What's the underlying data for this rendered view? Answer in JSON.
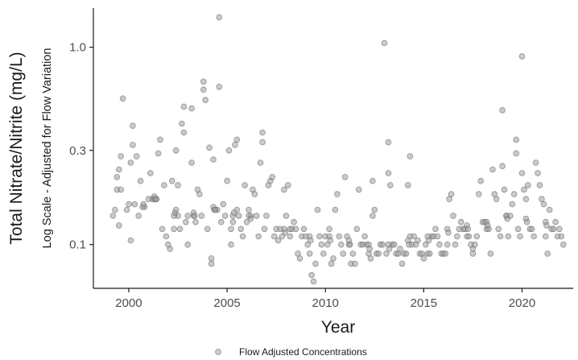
{
  "chart_data": {
    "type": "scatter",
    "title": "",
    "xlabel": "Year",
    "ylabel": "Total Nitrate/Nitrite (mg/L)",
    "ylabel_secondary": "Log Scale - Adjusted for Flow Variation",
    "x_scale": "linear",
    "y_scale": "log",
    "xlim": [
      1998.2,
      2022.6
    ],
    "ylim": [
      0.06,
      1.58
    ],
    "x_ticks": [
      2000,
      2005,
      2010,
      2015,
      2020
    ],
    "x_tick_labels": [
      "2000",
      "2005",
      "2010",
      "2015",
      "2020"
    ],
    "y_ticks": [
      0.1,
      0.3,
      1.0
    ],
    "y_tick_labels": [
      "0.1",
      "0.3",
      "1.0"
    ],
    "grid": false,
    "legend_position": "bottom",
    "marker_color": "#9e9e9e",
    "series": [
      {
        "name": "Flow Adjusted Concentrations",
        "points": [
          [
            1999.2,
            0.14
          ],
          [
            1999.3,
            0.15
          ],
          [
            1999.4,
            0.19
          ],
          [
            1999.4,
            0.22
          ],
          [
            1999.5,
            0.125
          ],
          [
            1999.5,
            0.24
          ],
          [
            1999.6,
            0.28
          ],
          [
            1999.6,
            0.19
          ],
          [
            1999.7,
            0.55
          ],
          [
            1999.9,
            0.15
          ],
          [
            2000.0,
            0.16
          ],
          [
            2000.1,
            0.105
          ],
          [
            2000.1,
            0.26
          ],
          [
            2000.2,
            0.4
          ],
          [
            2000.2,
            0.32
          ],
          [
            2000.3,
            0.16
          ],
          [
            2000.4,
            0.28
          ],
          [
            2000.5,
            0.14
          ],
          [
            2000.6,
            0.21
          ],
          [
            2000.8,
            0.155
          ],
          [
            2001.0,
            0.17
          ],
          [
            2001.1,
            0.23
          ],
          [
            2001.2,
            0.17
          ],
          [
            2001.3,
            0.17
          ],
          [
            2001.4,
            0.17
          ],
          [
            2001.5,
            0.29
          ],
          [
            2001.6,
            0.34
          ],
          [
            2001.7,
            0.12
          ],
          [
            2001.8,
            0.2
          ],
          [
            2001.9,
            0.11
          ],
          [
            2002.0,
            0.1
          ],
          [
            2002.1,
            0.095
          ],
          [
            2002.2,
            0.21
          ],
          [
            2002.3,
            0.12
          ],
          [
            2002.4,
            0.3
          ],
          [
            2002.5,
            0.14
          ],
          [
            2002.5,
            0.2
          ],
          [
            2002.6,
            0.12
          ],
          [
            2002.7,
            0.41
          ],
          [
            2002.8,
            0.5
          ],
          [
            2002.8,
            0.37
          ],
          [
            2002.9,
            0.13
          ],
          [
            2003.0,
            0.14
          ],
          [
            2003.0,
            0.1
          ],
          [
            2003.2,
            0.49
          ],
          [
            2003.2,
            0.26
          ],
          [
            2003.3,
            0.14
          ],
          [
            2003.4,
            0.13
          ],
          [
            2003.5,
            0.19
          ],
          [
            2003.6,
            0.18
          ],
          [
            2003.7,
            0.14
          ],
          [
            2003.8,
            0.61
          ],
          [
            2003.8,
            0.67
          ],
          [
            2003.9,
            0.54
          ],
          [
            2004.0,
            0.12
          ],
          [
            2004.1,
            0.31
          ],
          [
            2004.2,
            0.08
          ],
          [
            2004.2,
            0.085
          ],
          [
            2004.3,
            0.27
          ],
          [
            2004.4,
            0.15
          ],
          [
            2004.5,
            0.15
          ],
          [
            2004.6,
            0.63
          ],
          [
            2004.6,
            1.42
          ],
          [
            2004.7,
            0.13
          ],
          [
            2004.8,
            0.16
          ],
          [
            2004.9,
            0.14
          ],
          [
            2005.0,
            0.21
          ],
          [
            2005.1,
            0.3
          ],
          [
            2005.2,
            0.12
          ],
          [
            2005.2,
            0.1
          ],
          [
            2005.3,
            0.13
          ],
          [
            2005.4,
            0.32
          ],
          [
            2005.5,
            0.34
          ],
          [
            2005.5,
            0.15
          ],
          [
            2005.6,
            0.14
          ],
          [
            2005.7,
            0.12
          ],
          [
            2005.8,
            0.11
          ],
          [
            2005.9,
            0.2
          ],
          [
            2006.0,
            0.13
          ],
          [
            2006.1,
            0.15
          ],
          [
            2006.2,
            0.14
          ],
          [
            2006.3,
            0.19
          ],
          [
            2006.4,
            0.18
          ],
          [
            2006.5,
            0.14
          ],
          [
            2006.6,
            0.11
          ],
          [
            2006.7,
            0.26
          ],
          [
            2006.8,
            0.33
          ],
          [
            2006.8,
            0.37
          ],
          [
            2006.9,
            0.12
          ],
          [
            2007.0,
            0.14
          ],
          [
            2007.1,
            0.2
          ],
          [
            2007.2,
            0.21
          ],
          [
            2007.3,
            0.22
          ],
          [
            2007.4,
            0.11
          ],
          [
            2007.5,
            0.12
          ],
          [
            2007.6,
            0.105
          ],
          [
            2007.7,
            0.12
          ],
          [
            2007.8,
            0.11
          ],
          [
            2007.9,
            0.19
          ],
          [
            2008.0,
            0.14
          ],
          [
            2008.1,
            0.2
          ],
          [
            2008.2,
            0.12
          ],
          [
            2008.3,
            0.12
          ],
          [
            2008.4,
            0.13
          ],
          [
            2008.5,
            0.12
          ],
          [
            2008.6,
            0.09
          ],
          [
            2008.7,
            0.085
          ],
          [
            2008.8,
            0.11
          ],
          [
            2008.9,
            0.12
          ],
          [
            2009.0,
            0.11
          ],
          [
            2009.1,
            0.1
          ],
          [
            2009.2,
            0.09
          ],
          [
            2009.3,
            0.07
          ],
          [
            2009.4,
            0.065
          ],
          [
            2009.5,
            0.08
          ],
          [
            2009.6,
            0.15
          ],
          [
            2009.7,
            0.11
          ],
          [
            2009.8,
            0.1
          ],
          [
            2009.9,
            0.09
          ],
          [
            2010.0,
            0.11
          ],
          [
            2010.1,
            0.1
          ],
          [
            2010.2,
            0.12
          ],
          [
            2010.3,
            0.08
          ],
          [
            2010.4,
            0.085
          ],
          [
            2010.5,
            0.15
          ],
          [
            2010.6,
            0.18
          ],
          [
            2010.7,
            0.11
          ],
          [
            2010.8,
            0.1
          ],
          [
            2010.9,
            0.09
          ],
          [
            2011.0,
            0.22
          ],
          [
            2011.1,
            0.11
          ],
          [
            2011.2,
            0.1
          ],
          [
            2011.3,
            0.08
          ],
          [
            2011.4,
            0.09
          ],
          [
            2011.5,
            0.08
          ],
          [
            2011.6,
            0.12
          ],
          [
            2011.7,
            0.19
          ],
          [
            2011.8,
            0.1
          ],
          [
            2011.9,
            0.1
          ],
          [
            2012.0,
            0.11
          ],
          [
            2012.1,
            0.1
          ],
          [
            2012.2,
            0.09
          ],
          [
            2012.3,
            0.085
          ],
          [
            2012.4,
            0.14
          ],
          [
            2012.4,
            0.21
          ],
          [
            2012.5,
            0.15
          ],
          [
            2012.6,
            0.09
          ],
          [
            2012.7,
            0.09
          ],
          [
            2012.8,
            0.1
          ],
          [
            2012.9,
            0.1
          ],
          [
            2013.0,
            1.05
          ],
          [
            2013.1,
            0.09
          ],
          [
            2013.2,
            0.33
          ],
          [
            2013.2,
            0.23
          ],
          [
            2013.3,
            0.2
          ],
          [
            2013.4,
            0.1
          ],
          [
            2013.5,
            0.1
          ],
          [
            2013.6,
            0.09
          ],
          [
            2013.7,
            0.09
          ],
          [
            2013.8,
            0.095
          ],
          [
            2013.9,
            0.08
          ],
          [
            2014.0,
            0.09
          ],
          [
            2014.1,
            0.09
          ],
          [
            2014.2,
            0.2
          ],
          [
            2014.3,
            0.28
          ],
          [
            2014.3,
            0.11
          ],
          [
            2014.4,
            0.1
          ],
          [
            2014.5,
            0.11
          ],
          [
            2014.6,
            0.1
          ],
          [
            2014.7,
            0.105
          ],
          [
            2014.8,
            0.09
          ],
          [
            2014.9,
            0.09
          ],
          [
            2015.0,
            0.085
          ],
          [
            2015.1,
            0.1
          ],
          [
            2015.2,
            0.09
          ],
          [
            2015.3,
            0.09
          ],
          [
            2015.4,
            0.11
          ],
          [
            2015.5,
            0.11
          ],
          [
            2015.6,
            0.12
          ],
          [
            2015.7,
            0.11
          ],
          [
            2015.8,
            0.1
          ],
          [
            2015.9,
            0.09
          ],
          [
            2016.0,
            0.09
          ],
          [
            2016.1,
            0.09
          ],
          [
            2016.2,
            0.1
          ],
          [
            2016.3,
            0.17
          ],
          [
            2016.4,
            0.18
          ],
          [
            2016.5,
            0.14
          ],
          [
            2016.6,
            0.1
          ],
          [
            2016.7,
            0.11
          ],
          [
            2016.8,
            0.12
          ],
          [
            2016.9,
            0.13
          ],
          [
            2017.0,
            0.12
          ],
          [
            2017.1,
            0.12
          ],
          [
            2017.2,
            0.11
          ],
          [
            2017.3,
            0.11
          ],
          [
            2017.4,
            0.1
          ],
          [
            2017.5,
            0.095
          ],
          [
            2017.5,
            0.09
          ],
          [
            2017.6,
            0.1
          ],
          [
            2017.7,
            0.11
          ],
          [
            2017.8,
            0.18
          ],
          [
            2017.9,
            0.21
          ],
          [
            2018.0,
            0.13
          ],
          [
            2018.1,
            0.13
          ],
          [
            2018.2,
            0.12
          ],
          [
            2018.3,
            0.12
          ],
          [
            2018.4,
            0.09
          ],
          [
            2018.5,
            0.24
          ],
          [
            2018.6,
            0.18
          ],
          [
            2018.7,
            0.17
          ],
          [
            2018.8,
            0.12
          ],
          [
            2018.9,
            0.11
          ],
          [
            2019.0,
            0.48
          ],
          [
            2019.0,
            0.25
          ],
          [
            2019.1,
            0.19
          ],
          [
            2019.2,
            0.14
          ],
          [
            2019.3,
            0.11
          ],
          [
            2019.4,
            0.14
          ],
          [
            2019.5,
            0.16
          ],
          [
            2019.6,
            0.18
          ],
          [
            2019.7,
            0.34
          ],
          [
            2019.7,
            0.29
          ],
          [
            2019.8,
            0.12
          ],
          [
            2019.9,
            0.11
          ],
          [
            2020.0,
            0.9
          ],
          [
            2020.0,
            0.23
          ],
          [
            2020.1,
            0.19
          ],
          [
            2020.2,
            0.17
          ],
          [
            2020.3,
            0.2
          ],
          [
            2020.4,
            0.12
          ],
          [
            2020.5,
            0.12
          ],
          [
            2020.6,
            0.11
          ],
          [
            2020.7,
            0.26
          ],
          [
            2020.8,
            0.23
          ],
          [
            2020.9,
            0.2
          ],
          [
            2021.0,
            0.17
          ],
          [
            2021.1,
            0.16
          ],
          [
            2021.2,
            0.11
          ],
          [
            2021.3,
            0.09
          ],
          [
            2021.4,
            0.15
          ],
          [
            2021.5,
            0.12
          ],
          [
            2021.6,
            0.12
          ],
          [
            2021.7,
            0.13
          ],
          [
            2021.8,
            0.11
          ],
          [
            2021.9,
            0.12
          ],
          [
            2022.0,
            0.11
          ],
          [
            2022.1,
            0.1
          ]
        ]
      },
      {
        "name": "Flow Adjusted Concentrations",
        "role": "seasonal band",
        "points": [
          [
            2000.7,
            0.155
          ],
          [
            2000.75,
            0.16
          ],
          [
            2001.3,
            0.175
          ],
          [
            2001.35,
            0.17
          ],
          [
            2001.4,
            0.17
          ],
          [
            2002.3,
            0.14
          ],
          [
            2002.35,
            0.145
          ],
          [
            2002.4,
            0.15
          ],
          [
            2003.3,
            0.145
          ],
          [
            2003.35,
            0.14
          ],
          [
            2004.3,
            0.155
          ],
          [
            2004.35,
            0.15
          ],
          [
            2004.4,
            0.15
          ],
          [
            2005.3,
            0.14
          ],
          [
            2005.35,
            0.145
          ],
          [
            2006.1,
            0.14
          ],
          [
            2006.2,
            0.135
          ],
          [
            2007.9,
            0.12
          ],
          [
            2007.95,
            0.115
          ],
          [
            2008.2,
            0.11
          ],
          [
            2009.2,
            0.11
          ],
          [
            2009.25,
            0.105
          ],
          [
            2010.2,
            0.11
          ],
          [
            2010.25,
            0.105
          ],
          [
            2011.2,
            0.105
          ],
          [
            2011.25,
            0.1
          ],
          [
            2012.2,
            0.1
          ],
          [
            2012.25,
            0.095
          ],
          [
            2013.2,
            0.1
          ],
          [
            2013.25,
            0.095
          ],
          [
            2014.2,
            0.105
          ],
          [
            2014.25,
            0.1
          ],
          [
            2015.2,
            0.11
          ],
          [
            2015.25,
            0.105
          ],
          [
            2016.2,
            0.12
          ],
          [
            2016.25,
            0.115
          ],
          [
            2017.2,
            0.125
          ],
          [
            2017.25,
            0.12
          ],
          [
            2018.2,
            0.13
          ],
          [
            2018.25,
            0.125
          ],
          [
            2019.2,
            0.14
          ],
          [
            2019.25,
            0.135
          ],
          [
            2020.2,
            0.135
          ],
          [
            2020.25,
            0.13
          ],
          [
            2021.2,
            0.13
          ],
          [
            2021.25,
            0.125
          ]
        ]
      }
    ]
  },
  "legend": {
    "label": "Flow Adjusted Concentrations"
  }
}
